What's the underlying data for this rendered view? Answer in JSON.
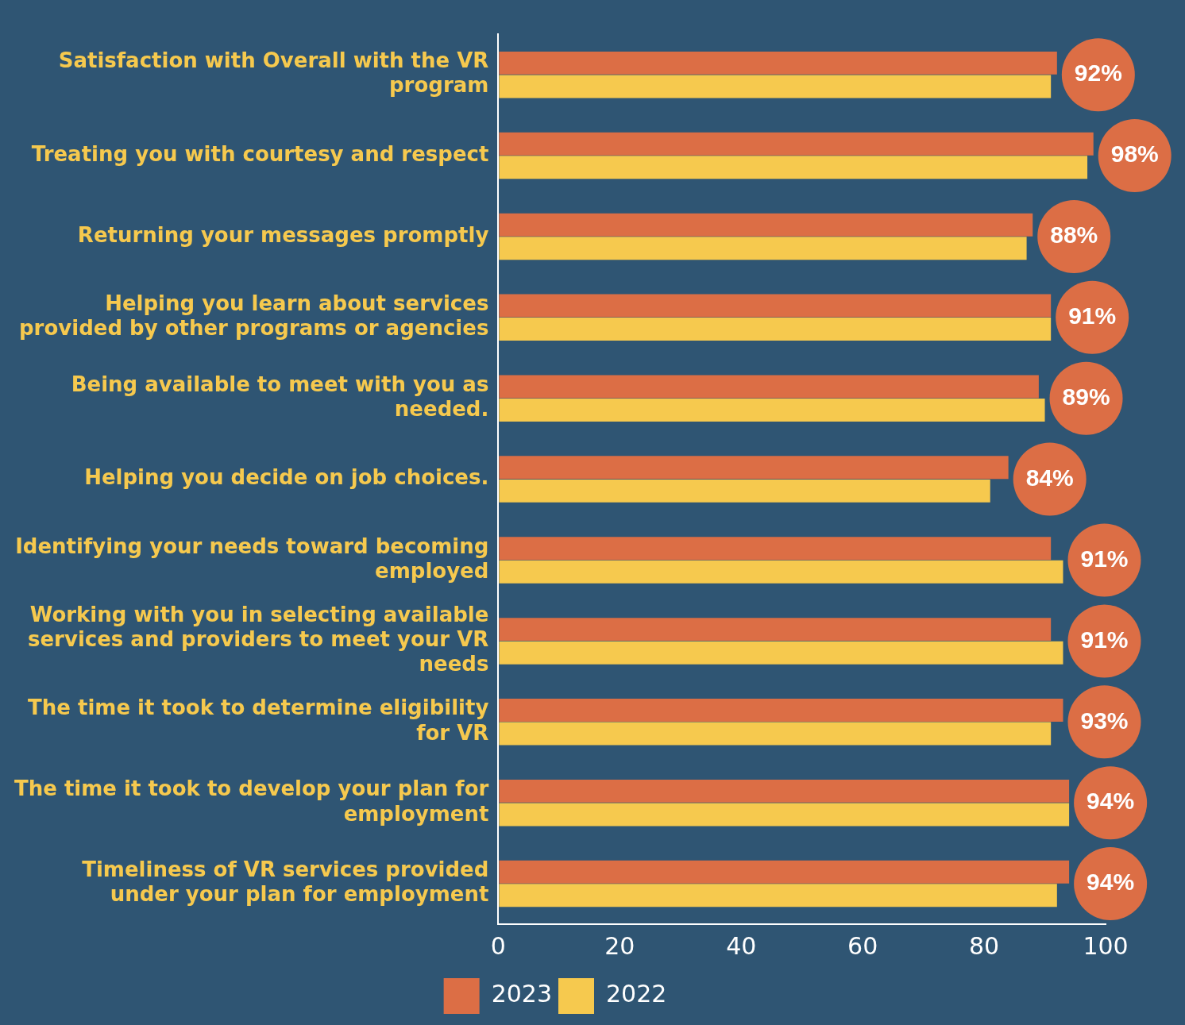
{
  "chart_data": {
    "type": "bar",
    "orientation": "horizontal",
    "categories": [
      "Satisfaction with Overall with the VR program",
      "Treating you with courtesy and respect",
      "Returning your messages promptly",
      "Helping you learn about services provided by other programs or agencies",
      "Being available to meet with you as needed.",
      "Helping you decide on job choices.",
      "Identifying your needs toward becoming employed",
      "Working with you in selecting available services and providers to meet your VR needs",
      "The time it took to determine eligibility for VR",
      "The time it took to develop your plan for employment",
      "Timeliness of VR services provided under your plan for employment"
    ],
    "series": [
      {
        "name": "2023",
        "color": "#dc6e45",
        "values": [
          92,
          98,
          88,
          91,
          89,
          84,
          91,
          91,
          93,
          94,
          94
        ],
        "value_labels": [
          "92%",
          "98%",
          "88%",
          "91%",
          "89%",
          "84%",
          "91%",
          "91%",
          "93%",
          "94%",
          "94%"
        ]
      },
      {
        "name": "2022",
        "color": "#f6c94e",
        "values": [
          91,
          97,
          87,
          91,
          90,
          81,
          93,
          93,
          91,
          94,
          92
        ]
      }
    ],
    "xlim": [
      0,
      100
    ],
    "xticks": [
      0,
      20,
      40,
      60,
      80,
      100
    ],
    "grid": false,
    "legend": "bottom"
  }
}
